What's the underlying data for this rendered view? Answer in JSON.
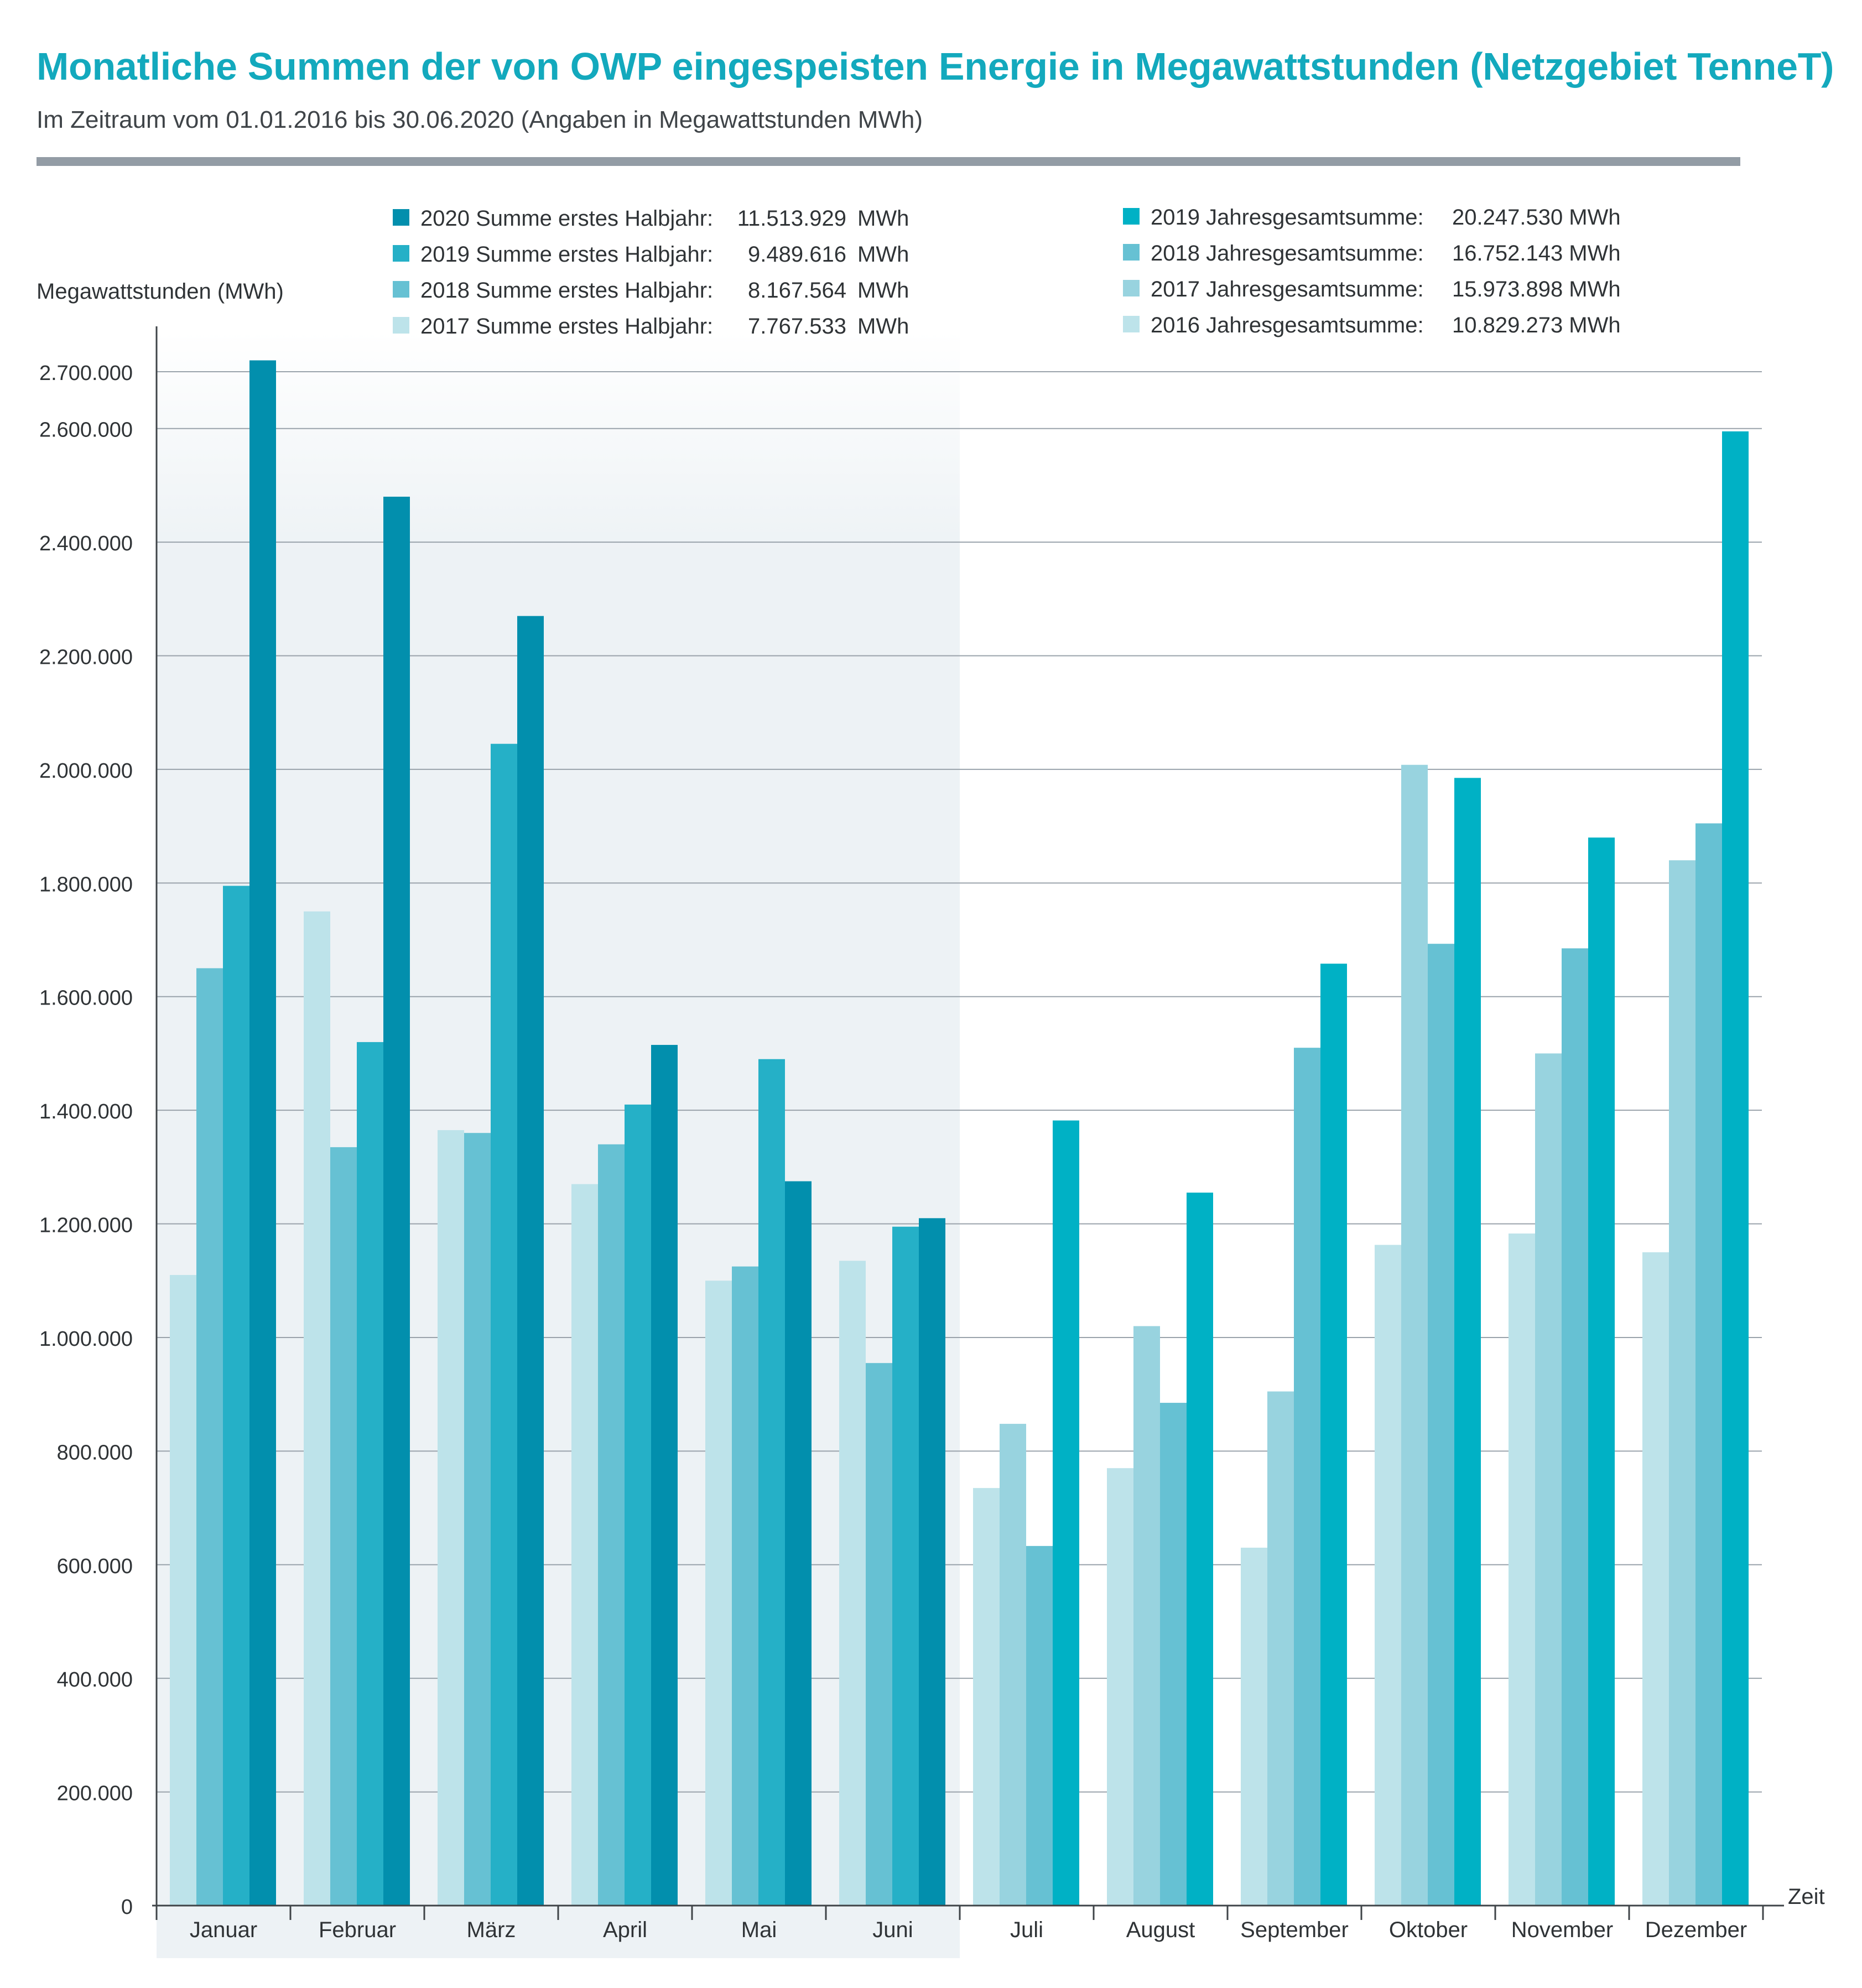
{
  "title": "Monatliche Summen der von OWP eingespeisten Energie in Megawattstunden (Netzgebiet TenneT)",
  "subtitle": "Im Zeitraum vom 01.01.2016 bis 30.06.2020  (Angaben in Megawattstunden MWh)",
  "colors": {
    "y2016": "#bde3ea",
    "y2017": "#98d3df",
    "y2018": "#66c1d3",
    "y2019_h1": "#25b0c7",
    "y2020": "#028fad",
    "y2019_h2": "#00b1c5",
    "grid": "#9aa3ab",
    "axis": "#3f4448",
    "shade": "#edf2f5"
  },
  "legend_h1": [
    {
      "label": "2020 Summe erstes Halbjahr:",
      "value": "11.513.929",
      "unit": "MWh",
      "color_key": "y2020"
    },
    {
      "label": "2019 Summe erstes Halbjahr:",
      "value": "9.489.616",
      "unit": "MWh",
      "color_key": "y2019_h1"
    },
    {
      "label": "2018 Summe erstes Halbjahr:",
      "value": "8.167.564",
      "unit": "MWh",
      "color_key": "y2018"
    },
    {
      "label": "2017 Summe erstes Halbjahr:",
      "value": "7.767.533",
      "unit": "MWh",
      "color_key": "y2016"
    }
  ],
  "legend_year": [
    {
      "label": "2019 Jahresgesamtsumme:",
      "value": "20.247.530 MWh",
      "color_key": "y2019_h2"
    },
    {
      "label": "2018 Jahresgesamtsumme:",
      "value": "16.752.143 MWh",
      "color_key": "y2018"
    },
    {
      "label": "2017 Jahresgesamtsumme:",
      "value": "15.973.898 MWh",
      "color_key": "y2017"
    },
    {
      "label": "2016 Jahresgesamtsumme:",
      "value": "10.829.273 MWh",
      "color_key": "y2016"
    }
  ],
  "chart_data": {
    "type": "bar",
    "ylabel": "Megawattstunden (MWh)",
    "xlabel": "Zeit",
    "ylim": [
      0,
      2800000
    ],
    "yticks": [
      0,
      200000,
      400000,
      600000,
      800000,
      1000000,
      1200000,
      1400000,
      1600000,
      1800000,
      2000000,
      2200000,
      2400000,
      2600000,
      2700000
    ],
    "ytick_labels": [
      "0",
      "200.000",
      "400.000",
      "600.000",
      "800.000",
      "1.000.000",
      "1.200.000",
      "1.400.000",
      "1.600.000",
      "1.800.000",
      "2.000.000",
      "2.200.000",
      "2.400.000",
      "2.600.000",
      "2.700.000"
    ],
    "grid": true,
    "shaded_months": 6,
    "categories": [
      "Januar",
      "Februar",
      "März",
      "April",
      "Mai",
      "Juni",
      "Juli",
      "August",
      "September",
      "Oktober",
      "November",
      "Dezember"
    ],
    "groups": [
      {
        "month": "Januar",
        "values": [
          1110000,
          1650000,
          1795000,
          2720000
        ],
        "color_keys": [
          "y2016",
          "y2018",
          "y2019_h1",
          "y2020"
        ]
      },
      {
        "month": "Februar",
        "values": [
          1750000,
          1335000,
          1520000,
          2480000
        ],
        "color_keys": [
          "y2016",
          "y2018",
          "y2019_h1",
          "y2020"
        ]
      },
      {
        "month": "März",
        "values": [
          1365000,
          1360000,
          2045000,
          2270000
        ],
        "color_keys": [
          "y2016",
          "y2018",
          "y2019_h1",
          "y2020"
        ]
      },
      {
        "month": "April",
        "values": [
          1270000,
          1340000,
          1410000,
          1515000
        ],
        "color_keys": [
          "y2016",
          "y2018",
          "y2019_h1",
          "y2020"
        ]
      },
      {
        "month": "Mai",
        "values": [
          1100000,
          1125000,
          1490000,
          1275000
        ],
        "color_keys": [
          "y2016",
          "y2018",
          "y2019_h1",
          "y2020"
        ]
      },
      {
        "month": "Juni",
        "values": [
          1135000,
          955000,
          1195000,
          1210000
        ],
        "color_keys": [
          "y2016",
          "y2018",
          "y2019_h1",
          "y2020"
        ]
      },
      {
        "month": "Juli",
        "values": [
          735000,
          848000,
          633000,
          1382000
        ],
        "color_keys": [
          "y2016",
          "y2017",
          "y2018",
          "y2019_h2"
        ]
      },
      {
        "month": "August",
        "values": [
          770000,
          1020000,
          885000,
          1255000
        ],
        "color_keys": [
          "y2016",
          "y2017",
          "y2018",
          "y2019_h2"
        ]
      },
      {
        "month": "September",
        "values": [
          630000,
          905000,
          1510000,
          1658000
        ],
        "color_keys": [
          "y2016",
          "y2017",
          "y2018",
          "y2019_h2"
        ]
      },
      {
        "month": "Oktober",
        "values": [
          1163000,
          2008000,
          1693000,
          1985000
        ],
        "color_keys": [
          "y2016",
          "y2017",
          "y2018",
          "y2019_h2"
        ]
      },
      {
        "month": "November",
        "values": [
          1183000,
          1500000,
          1685000,
          1880000
        ],
        "color_keys": [
          "y2016",
          "y2017",
          "y2018",
          "y2019_h2"
        ]
      },
      {
        "month": "Dezember",
        "values": [
          1150000,
          1840000,
          1905000,
          2595000
        ],
        "color_keys": [
          "y2016",
          "y2017",
          "y2018",
          "y2019_h2"
        ]
      }
    ]
  }
}
